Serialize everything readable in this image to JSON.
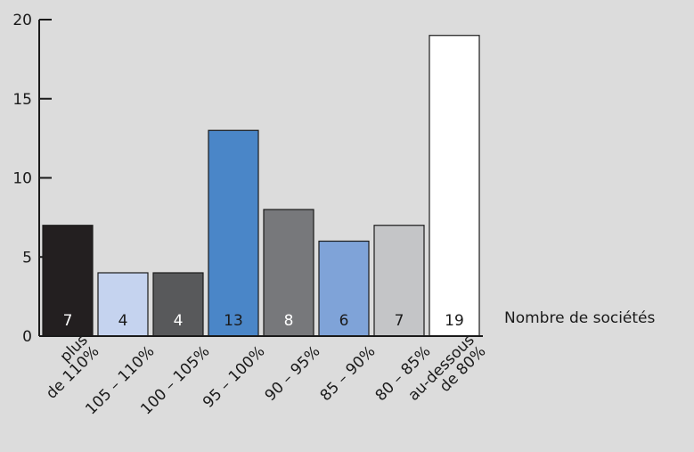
{
  "chart_data": {
    "type": "bar",
    "categories": [
      [
        "plus",
        "de 110%"
      ],
      [
        "105 – 110%"
      ],
      [
        "100 – 105%"
      ],
      [
        "95 – 100%"
      ],
      [
        "90 – 95%"
      ],
      [
        "85 – 90%"
      ],
      [
        "80 – 85%"
      ],
      [
        "au-dessous",
        "de 80%"
      ]
    ],
    "values": [
      7,
      4,
      4,
      13,
      8,
      6,
      7,
      19
    ],
    "value_labels": [
      "7",
      "4",
      "4",
      "13",
      "8",
      "6",
      "7",
      "19"
    ],
    "colors": [
      "#231f20",
      "#c5d3ef",
      "#58595b",
      "#4a86c8",
      "#77787b",
      "#7fa3d8",
      "#c4c5c7",
      "#ffffff"
    ],
    "label_colors": [
      "#ffffff",
      "#1a1a1a",
      "#ffffff",
      "#1a1a1a",
      "#ffffff",
      "#1a1a1a",
      "#1a1a1a",
      "#1a1a1a"
    ],
    "ylim": [
      0,
      20
    ],
    "yticks": [
      0,
      5,
      10,
      15,
      20
    ],
    "ytick_labels": [
      "0",
      "5",
      "10",
      "15",
      "20"
    ],
    "legend_text": "Nombre de sociétés",
    "grid": false
  }
}
